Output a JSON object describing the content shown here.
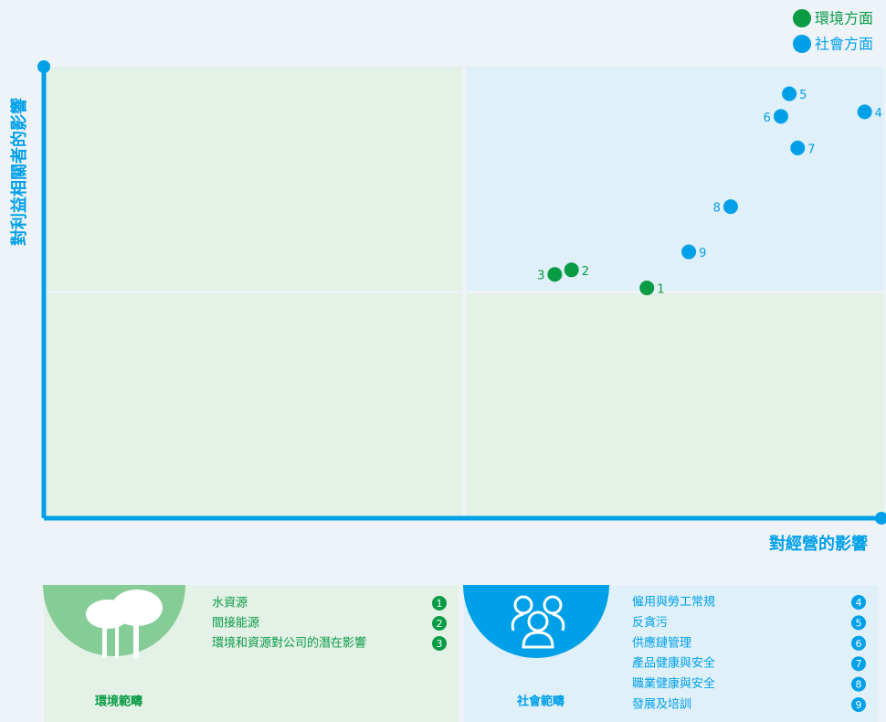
{
  "chart_data": {
    "type": "scatter",
    "x_label": "對經營的影響",
    "y_label": "對利益相關者的影響",
    "xlim": [
      0,
      10
    ],
    "ylim": [
      0,
      10
    ],
    "legend": "top-right",
    "series": [
      {
        "name": "環境方面",
        "color": "#0a9b45",
        "labels": [
          "1",
          "2",
          "3"
        ],
        "x": [
          7.2,
          6.3,
          6.1
        ],
        "values": [
          5.1,
          5.5,
          5.4
        ]
      },
      {
        "name": "社會方面",
        "color": "#00a0e9",
        "labels": [
          "4",
          "5",
          "6",
          "7",
          "8",
          "9"
        ],
        "x": [
          9.8,
          8.9,
          8.8,
          9.0,
          8.2,
          7.7
        ],
        "values": [
          9.0,
          9.4,
          8.9,
          8.2,
          6.9,
          5.9
        ]
      }
    ]
  },
  "panels": [
    {
      "title": "環境範疇",
      "items": [
        {
          "label": "水資源",
          "number": "1"
        },
        {
          "label": "間接能源",
          "number": "2"
        },
        {
          "label": "環境和資源對公司的潛在影響",
          "number": "3"
        }
      ]
    },
    {
      "title": "社會範疇",
      "items": [
        {
          "label": "僱用與勞工常規",
          "number": "4"
        },
        {
          "label": "反貪污",
          "number": "5"
        },
        {
          "label": "供應鏈管理",
          "number": "6"
        },
        {
          "label": "產品健康與安全",
          "number": "7"
        },
        {
          "label": "職業健康與安全",
          "number": "8"
        },
        {
          "label": "發展及培訓",
          "number": "9"
        }
      ]
    }
  ]
}
